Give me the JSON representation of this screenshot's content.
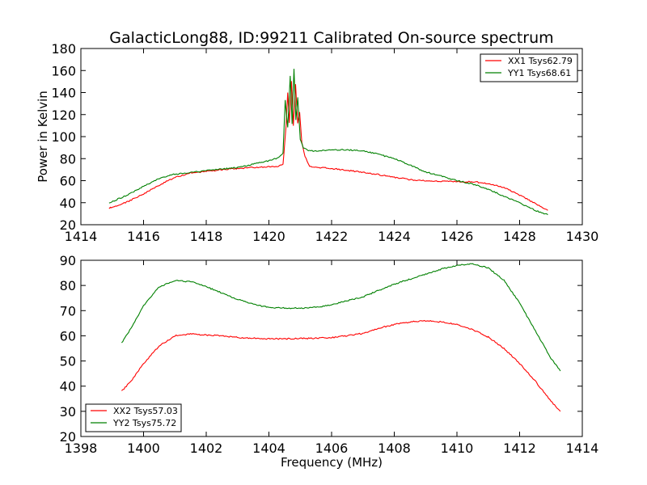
{
  "chart_data": [
    {
      "type": "line",
      "title": "GalacticLong88, ID:99211 Calibrated On-source spectrum",
      "xlabel": "",
      "ylabel": "Power in Kelvin",
      "xlim": [
        1414,
        1430
      ],
      "ylim": [
        20,
        180
      ],
      "xticks": [
        1414,
        1416,
        1418,
        1420,
        1422,
        1424,
        1426,
        1428,
        1430
      ],
      "yticks": [
        20,
        40,
        60,
        80,
        100,
        120,
        140,
        160,
        180
      ],
      "grid": false,
      "legend_position": "top-right",
      "series": [
        {
          "name": "XX1 Tsys62.79",
          "color": "#ff0000",
          "points": [
            [
              1414.9,
              35
            ],
            [
              1415.5,
              41
            ],
            [
              1416,
              48
            ],
            [
              1416.5,
              56
            ],
            [
              1417,
              63
            ],
            [
              1417.5,
              67
            ],
            [
              1418,
              68.5
            ],
            [
              1418.5,
              70
            ],
            [
              1419,
              71
            ],
            [
              1419.5,
              72
            ],
            [
              1420,
              72.5
            ],
            [
              1420.3,
              73
            ],
            [
              1420.45,
              75
            ],
            [
              1420.55,
              110
            ],
            [
              1420.6,
              140
            ],
            [
              1420.65,
              112
            ],
            [
              1420.72,
              150
            ],
            [
              1420.78,
              110
            ],
            [
              1420.85,
              148
            ],
            [
              1420.92,
              112
            ],
            [
              1420.98,
              122
            ],
            [
              1421.05,
              95
            ],
            [
              1421.15,
              82
            ],
            [
              1421.3,
              73
            ],
            [
              1421.6,
              72
            ],
            [
              1422,
              71
            ],
            [
              1422.5,
              69.5
            ],
            [
              1423,
              67.5
            ],
            [
              1423.5,
              65.5
            ],
            [
              1424,
              63
            ],
            [
              1424.5,
              61
            ],
            [
              1425,
              60
            ],
            [
              1425.5,
              59.5
            ],
            [
              1426,
              59
            ],
            [
              1426.5,
              59
            ],
            [
              1427,
              57.5
            ],
            [
              1427.5,
              54
            ],
            [
              1428,
              47
            ],
            [
              1428.5,
              39
            ],
            [
              1428.9,
              33
            ]
          ]
        },
        {
          "name": "YY1 Tsys68.61",
          "color": "#008000",
          "points": [
            [
              1414.9,
              40
            ],
            [
              1415.5,
              47
            ],
            [
              1416,
              55
            ],
            [
              1416.5,
              62
            ],
            [
              1417,
              66
            ],
            [
              1417.5,
              67.5
            ],
            [
              1418,
              69
            ],
            [
              1418.5,
              70.5
            ],
            [
              1419,
              72
            ],
            [
              1419.5,
              75
            ],
            [
              1420,
              78
            ],
            [
              1420.3,
              81
            ],
            [
              1420.45,
              85
            ],
            [
              1420.52,
              133
            ],
            [
              1420.6,
              108
            ],
            [
              1420.68,
              155
            ],
            [
              1420.74,
              112
            ],
            [
              1420.8,
              162
            ],
            [
              1420.86,
              115
            ],
            [
              1420.92,
              136
            ],
            [
              1421,
              98
            ],
            [
              1421.1,
              90
            ],
            [
              1421.3,
              87
            ],
            [
              1421.6,
              87
            ],
            [
              1422,
              88
            ],
            [
              1422.5,
              88
            ],
            [
              1423,
              87
            ],
            [
              1423.5,
              84
            ],
            [
              1424,
              80
            ],
            [
              1424.5,
              74
            ],
            [
              1425,
              68
            ],
            [
              1425.5,
              64
            ],
            [
              1426,
              60
            ],
            [
              1426.5,
              57
            ],
            [
              1427,
              52
            ],
            [
              1427.5,
              46
            ],
            [
              1428,
              40
            ],
            [
              1428.5,
              33
            ],
            [
              1428.9,
              29
            ]
          ]
        }
      ]
    },
    {
      "type": "line",
      "title": "",
      "xlabel": "Frequency (MHz)",
      "ylabel": "",
      "xlim": [
        1398,
        1414
      ],
      "ylim": [
        20,
        90
      ],
      "xticks": [
        1398,
        1400,
        1402,
        1404,
        1406,
        1408,
        1410,
        1412,
        1414
      ],
      "yticks": [
        20,
        30,
        40,
        50,
        60,
        70,
        80,
        90
      ],
      "grid": false,
      "legend_position": "bottom-left",
      "series": [
        {
          "name": "XX2 Tsys57.03",
          "color": "#ff0000",
          "points": [
            [
              1399.3,
              38
            ],
            [
              1399.6,
              42
            ],
            [
              1400,
              49
            ],
            [
              1400.5,
              56
            ],
            [
              1401,
              60
            ],
            [
              1401.5,
              60.8
            ],
            [
              1402,
              60.3
            ],
            [
              1402.5,
              60
            ],
            [
              1403,
              59.3
            ],
            [
              1403.5,
              59
            ],
            [
              1404,
              58.8
            ],
            [
              1404.5,
              58.8
            ],
            [
              1405,
              59
            ],
            [
              1405.5,
              59
            ],
            [
              1406,
              59.3
            ],
            [
              1406.5,
              60
            ],
            [
              1407,
              61
            ],
            [
              1407.5,
              63
            ],
            [
              1408,
              64.5
            ],
            [
              1408.5,
              65.5
            ],
            [
              1409,
              66
            ],
            [
              1409.5,
              65.5
            ],
            [
              1410,
              64.5
            ],
            [
              1410.5,
              62.5
            ],
            [
              1411,
              59.5
            ],
            [
              1411.5,
              55
            ],
            [
              1412,
              49
            ],
            [
              1412.5,
              42
            ],
            [
              1413,
              34
            ],
            [
              1413.3,
              30
            ]
          ]
        },
        {
          "name": "YY2 Tsys75.72",
          "color": "#008000",
          "points": [
            [
              1399.3,
              57
            ],
            [
              1399.6,
              63
            ],
            [
              1400,
              72
            ],
            [
              1400.5,
              79.5
            ],
            [
              1401,
              82
            ],
            [
              1401.5,
              81.5
            ],
            [
              1402,
              79.5
            ],
            [
              1402.5,
              77
            ],
            [
              1403,
              74.5
            ],
            [
              1403.5,
              72.5
            ],
            [
              1404,
              71.3
            ],
            [
              1404.5,
              71
            ],
            [
              1405,
              71
            ],
            [
              1405.5,
              71.3
            ],
            [
              1406,
              72.3
            ],
            [
              1406.5,
              74
            ],
            [
              1407,
              75.5
            ],
            [
              1407.5,
              78
            ],
            [
              1408,
              80.5
            ],
            [
              1408.5,
              82.5
            ],
            [
              1409,
              84.5
            ],
            [
              1409.5,
              86.5
            ],
            [
              1410,
              88
            ],
            [
              1410.5,
              88.5
            ],
            [
              1411,
              87
            ],
            [
              1411.5,
              82
            ],
            [
              1412,
              73
            ],
            [
              1412.5,
              62
            ],
            [
              1413,
              51
            ],
            [
              1413.3,
              46
            ]
          ]
        }
      ]
    }
  ]
}
